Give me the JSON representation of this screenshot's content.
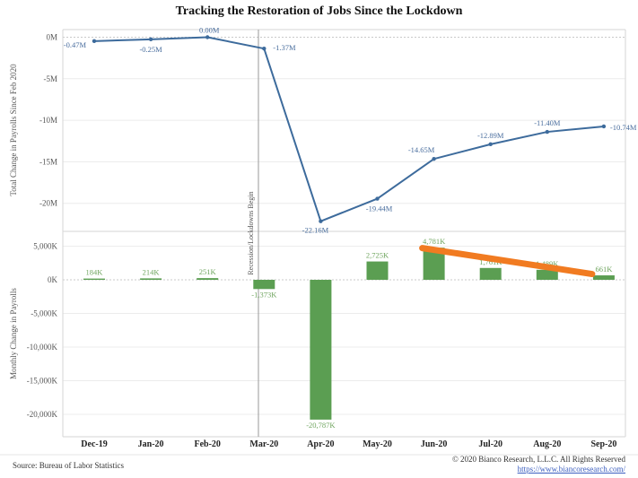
{
  "title": "Tracking the Restoration of Jobs Since the Lockdown",
  "colors": {
    "line": "#3d6b9c",
    "line_label": "#4a6e9e",
    "bar": "#5b9e52",
    "bar_label": "#6fa55f",
    "annotation_orange": "#f17b21",
    "grid": "#ececec",
    "zero_grid": "#c9c9c9",
    "panel_border": "#d6d6d6",
    "recession_line": "#999999",
    "link_blue": "#3a5dbf"
  },
  "annotations": {
    "recession_label": "Recession/Lockdowns Begin",
    "trend_line": {
      "description": "orange downward trend line over monthly gains",
      "from": {
        "month": "Jun-20",
        "value_k": 4781
      },
      "to": {
        "month": "Sep-20",
        "value_k": 661
      },
      "color": "#f17b21"
    }
  },
  "chart_data": [
    {
      "type": "line",
      "panel": "top",
      "ylabel": "Total Change in Payrolls Since Feb 2020",
      "categories": [
        "Dec-19",
        "Jan-20",
        "Feb-20",
        "Mar-20",
        "Apr-20",
        "May-20",
        "Jun-20",
        "Jul-20",
        "Aug-20",
        "Sep-20"
      ],
      "values": [
        -0.47,
        -0.25,
        0.0,
        -1.37,
        -22.16,
        -19.44,
        -14.65,
        -12.89,
        -11.4,
        -10.74
      ],
      "labels": [
        "-0.47M",
        "-0.25M",
        "0.00M",
        "-1.37M",
        "-22.16M",
        "-19.44M",
        "-14.65M",
        "-12.89M",
        "-11.40M",
        "-10.74M"
      ],
      "unit": "millions",
      "yticks": [
        "0M",
        "-5M",
        "-10M",
        "-15M",
        "-20M"
      ],
      "ytick_values": [
        0,
        -5,
        -10,
        -15,
        -20
      ],
      "ylim": [
        -23.5,
        0.9
      ],
      "grid": true,
      "legend": "none"
    },
    {
      "type": "bar",
      "panel": "bottom",
      "ylabel": "Monthly Change in Payrolls",
      "categories": [
        "Dec-19",
        "Jan-20",
        "Feb-20",
        "Mar-20",
        "Apr-20",
        "May-20",
        "Jun-20",
        "Jul-20",
        "Aug-20",
        "Sep-20"
      ],
      "values": [
        184,
        214,
        251,
        -1373,
        -20787,
        2725,
        4781,
        1761,
        1489,
        661
      ],
      "labels": [
        "184K",
        "214K",
        "251K",
        "-1,373K",
        "-20,787K",
        "2,725K",
        "4,781K",
        "1,761K",
        "1,489K",
        "661K"
      ],
      "unit": "thousands",
      "yticks": [
        "5,000K",
        "0K",
        "-5,000K",
        "-10,000K",
        "-15,000K",
        "-20,000K"
      ],
      "ytick_values": [
        5000,
        0,
        -5000,
        -10000,
        -15000,
        -20000
      ],
      "ylim": [
        -23300,
        6900
      ],
      "grid": true,
      "legend": "none"
    }
  ],
  "footer": {
    "source": "Source: Bureau of Labor Statistics",
    "copyright": "© 2020 Bianco Research, L.L.C. All Rights Reserved",
    "link": "https://www.biancoresearch.com/"
  }
}
